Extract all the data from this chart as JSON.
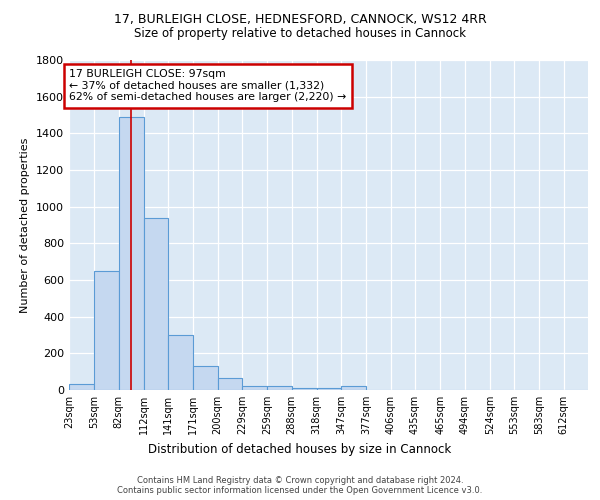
{
  "title1": "17, BURLEIGH CLOSE, HEDNESFORD, CANNOCK, WS12 4RR",
  "title2": "Size of property relative to detached houses in Cannock",
  "xlabel": "Distribution of detached houses by size in Cannock",
  "ylabel": "Number of detached properties",
  "bin_labels": [
    "23sqm",
    "53sqm",
    "82sqm",
    "112sqm",
    "141sqm",
    "171sqm",
    "200sqm",
    "229sqm",
    "259sqm",
    "288sqm",
    "318sqm",
    "347sqm",
    "377sqm",
    "406sqm",
    "435sqm",
    "465sqm",
    "494sqm",
    "524sqm",
    "553sqm",
    "583sqm",
    "612sqm"
  ],
  "bin_edges": [
    23,
    53,
    82,
    112,
    141,
    171,
    200,
    229,
    259,
    288,
    318,
    347,
    377,
    406,
    435,
    465,
    494,
    524,
    553,
    583,
    612
  ],
  "bar_heights": [
    35,
    650,
    1490,
    940,
    300,
    130,
    65,
    20,
    20,
    10,
    10,
    20,
    0,
    0,
    0,
    0,
    0,
    0,
    0,
    0,
    0
  ],
  "bar_color": "#c5d8f0",
  "bar_edge_color": "#5b9bd5",
  "background_color": "#dce9f5",
  "grid_color": "#ffffff",
  "red_line_x": 97,
  "annotation_line1": "17 BURLEIGH CLOSE: 97sqm",
  "annotation_line2": "← 37% of detached houses are smaller (1,332)",
  "annotation_line3": "62% of semi-detached houses are larger (2,220) →",
  "annotation_box_color": "#ffffff",
  "annotation_border_color": "#cc0000",
  "footer_text": "Contains HM Land Registry data © Crown copyright and database right 2024.\nContains public sector information licensed under the Open Government Licence v3.0.",
  "ylim": [
    0,
    1800
  ],
  "yticks": [
    0,
    200,
    400,
    600,
    800,
    1000,
    1200,
    1400,
    1600,
    1800
  ],
  "xlim_min": 23,
  "xlim_max": 641
}
